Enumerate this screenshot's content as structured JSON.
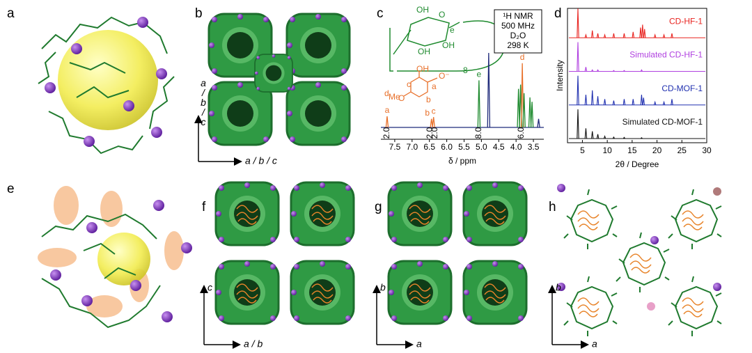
{
  "panels": {
    "labels": [
      "a",
      "b",
      "c",
      "d",
      "e",
      "f",
      "g",
      "h"
    ]
  },
  "axes": {
    "b": {
      "horizontal": "a / b / c",
      "vertical": "a / b / c"
    },
    "f": {
      "horizontal": "a / b",
      "vertical": "c"
    },
    "g": {
      "horizontal": "a",
      "vertical": "b"
    },
    "h": {
      "horizontal": "a",
      "vertical": "b"
    }
  },
  "nmr": {
    "type": "spectrum",
    "xlabel": "δ / ppm",
    "info": [
      "¹H NMR",
      "500 MHz",
      "D₂O",
      "298 K"
    ],
    "structure_labels": [
      "OH",
      "O",
      "e",
      "OH",
      "OH",
      "8"
    ],
    "guest_labels": [
      "OH",
      "O⁻",
      "O",
      "c",
      "b",
      "a",
      "d",
      "Me"
    ],
    "xlim": [
      7.9,
      3.2
    ],
    "ylim": [
      0,
      1
    ],
    "xticks": [
      7.5,
      {
        "value": 7,
        "label": "7.0"
      },
      6.5,
      {
        "value": 6,
        "label": "6.0"
      },
      5.5,
      {
        "value": 5,
        "label": "5.0"
      },
      4.5,
      {
        "value": 4,
        "label": "4.0"
      },
      3.5
    ],
    "peaks": [
      {
        "ppm": 7.72,
        "height": 0.13,
        "color": "#e8702a",
        "label": "a"
      },
      {
        "ppm": 6.44,
        "height": 0.1,
        "color": "#e8702a",
        "label": "b"
      },
      {
        "ppm": 6.38,
        "height": 0.12,
        "color": "#e8702a",
        "label": "c"
      },
      {
        "ppm": 5.07,
        "height": 0.55,
        "color": "#1e8a2e",
        "label": "e"
      },
      {
        "ppm": 4.79,
        "height": 0.87,
        "color": "#1f2a7a"
      },
      {
        "ppm": 3.93,
        "height": 0.45,
        "color": "#1e8a2e"
      },
      {
        "ppm": 3.87,
        "height": 0.5,
        "color": "#1e8a2e"
      },
      {
        "ppm": 3.82,
        "height": 0.75,
        "color": "#e8702a",
        "label": "d"
      },
      {
        "ppm": 3.77,
        "height": 0.4,
        "color": "#1e8a2e"
      },
      {
        "ppm": 3.6,
        "height": 0.35,
        "color": "#1e8a2e"
      },
      {
        "ppm": 3.54,
        "height": 0.3,
        "color": "#1e8a2e"
      },
      {
        "ppm": 3.35,
        "height": 0.1,
        "color": "#1f2a7a"
      }
    ],
    "integrals": [
      {
        "ppm": 7.72,
        "label": "2.0"
      },
      {
        "ppm": 6.48,
        "label": "2.0"
      },
      {
        "ppm": 6.34,
        "label": "2.0"
      },
      {
        "ppm": 5.07,
        "label": "8.0"
      },
      {
        "ppm": 3.85,
        "label": "6.0"
      }
    ]
  },
  "pxrd": {
    "type": "pattern",
    "xlabel": "2θ / Degree",
    "ylabel": "Intensity",
    "xlim": [
      2,
      30
    ],
    "ylim": [
      0,
      1
    ],
    "xticks": [
      5,
      10,
      15,
      20,
      25,
      30
    ],
    "series": [
      {
        "name": "CD-HF-1",
        "color": "#e8231f",
        "x": [
          4.1,
          5.7,
          7.0,
          8.1,
          9.5,
          11.3,
          13.4,
          15.2,
          16.7,
          17.1,
          17.5,
          19.6,
          21.4,
          23.0
        ],
        "values": [
          1.0,
          0.1,
          0.25,
          0.15,
          0.1,
          0.15,
          0.15,
          0.2,
          0.35,
          0.45,
          0.3,
          0.1,
          0.1,
          0.15
        ]
      },
      {
        "name": "Simulated CD-HF-1",
        "color": "#b040e0",
        "x": [
          4.1,
          5.7,
          7.0,
          8.1,
          11.3,
          13.4,
          16.9
        ],
        "values": [
          1.0,
          0.15,
          0.05,
          0.05,
          0.03,
          0.03,
          0.05
        ]
      },
      {
        "name": "CD-MOF-1",
        "color": "#2030b0",
        "x": [
          4.1,
          5.7,
          7.0,
          8.1,
          9.5,
          11.3,
          13.4,
          15.2,
          16.9,
          17.3,
          19.6,
          21.4,
          23.0
        ],
        "values": [
          1.0,
          0.35,
          0.5,
          0.3,
          0.2,
          0.15,
          0.2,
          0.2,
          0.35,
          0.25,
          0.1,
          0.1,
          0.2
        ]
      },
      {
        "name": "Simulated CD-MOF-1",
        "color": "#111111",
        "x": [
          4.1,
          5.7,
          7.0,
          8.1,
          9.5,
          11.3,
          13.4,
          16.9
        ],
        "values": [
          1.0,
          0.35,
          0.25,
          0.15,
          0.08,
          0.05,
          0.04,
          0.03
        ]
      }
    ]
  }
}
